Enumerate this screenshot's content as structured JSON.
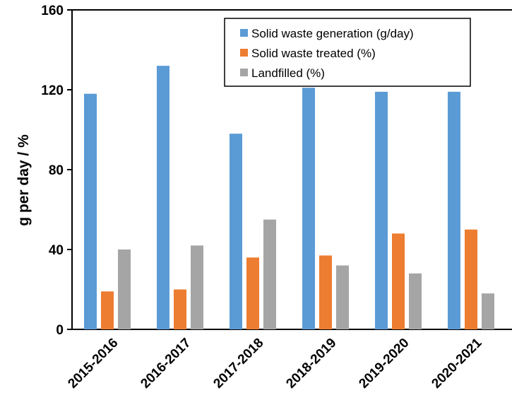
{
  "chart_data": {
    "type": "bar",
    "categories": [
      "2015-2016",
      "2016-2017",
      "2017-2018",
      "2018-2019",
      "2019-2020",
      "2020-2021"
    ],
    "series": [
      {
        "name": "Solid waste generation (g/day)",
        "color": "#5b9bd5",
        "values": [
          118,
          132,
          98,
          121,
          119,
          119
        ]
      },
      {
        "name": "Solid waste treated (%)",
        "color": "#ed7d31",
        "values": [
          19,
          20,
          36,
          37,
          48,
          50
        ]
      },
      {
        "name": "Landfilled (%)",
        "color": "#a5a5a5",
        "values": [
          40,
          42,
          55,
          32,
          28,
          18
        ]
      }
    ],
    "ylabel": "g per day / %",
    "xlabel": "",
    "ylim": [
      0,
      160
    ],
    "yticks": [
      0,
      40,
      80,
      120,
      160
    ],
    "grid": false,
    "legend_position": "top-right"
  }
}
